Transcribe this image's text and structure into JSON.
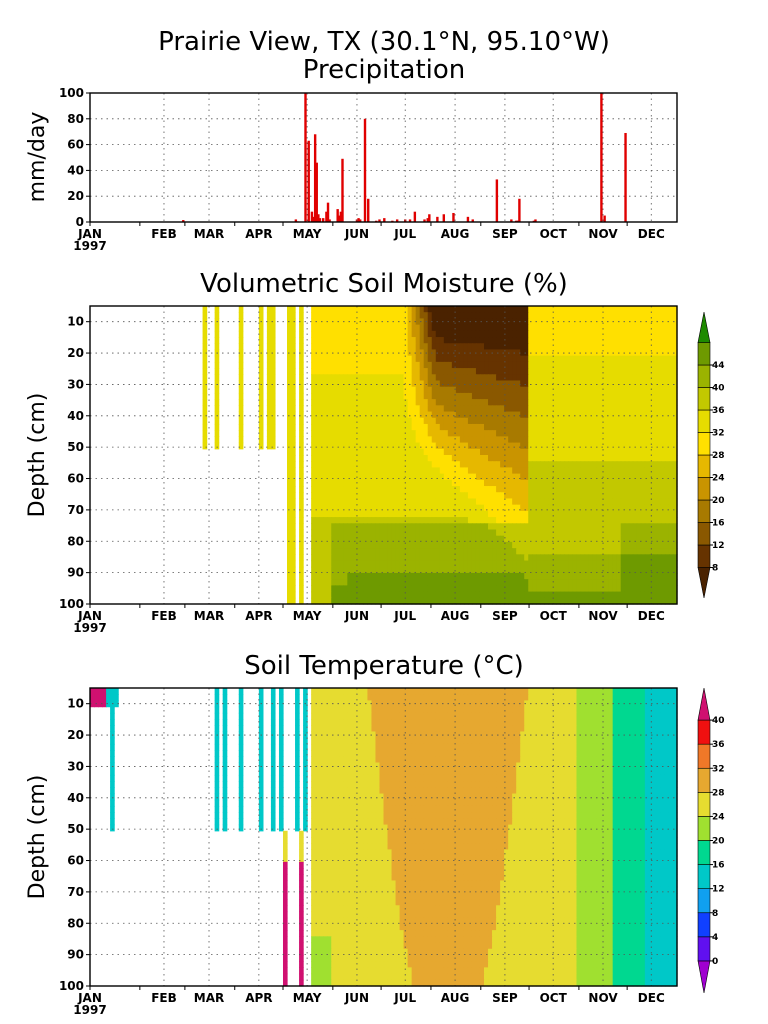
{
  "figure": {
    "title_line1": "Prairie View, TX (30.1°N, 95.10°W)",
    "year_label": "1997"
  },
  "months": [
    "JAN",
    "FEB",
    "MAR",
    "APR",
    "MAY",
    "JUN",
    "JUL",
    "AUG",
    "SEP",
    "OCT",
    "NOV",
    "DEC"
  ],
  "month_start_day": [
    0,
    31,
    59,
    90,
    120,
    151,
    181,
    212,
    243,
    273,
    304,
    334
  ],
  "chart_data": [
    {
      "type": "bar",
      "title": "Precipitation",
      "ylabel": "mm/day",
      "xlim": [
        0,
        365
      ],
      "ylim": [
        0,
        100
      ],
      "yticks": [
        0,
        20,
        40,
        60,
        80,
        100
      ],
      "bar_color": "#e00000",
      "x_day_of_year": [
        58,
        128,
        129,
        134,
        136,
        138,
        139,
        140,
        141,
        142,
        143,
        145,
        147,
        148,
        149,
        154,
        155,
        156,
        157,
        166,
        167,
        168,
        171,
        173,
        178,
        180,
        183,
        188,
        191,
        196,
        199,
        202,
        208,
        210,
        211,
        216,
        220,
        226,
        235,
        238,
        253,
        262,
        265,
        266,
        266,
        267,
        276,
        277,
        318,
        320,
        333
      ],
      "values": [
        1.5,
        2,
        0.5,
        100,
        63,
        8,
        4,
        68,
        46,
        6,
        3,
        3,
        8,
        15,
        2,
        10,
        5,
        8,
        49,
        2,
        3,
        2,
        80,
        18,
        1,
        2,
        3,
        1,
        2,
        2,
        2,
        8,
        2,
        3,
        6,
        4,
        6,
        7,
        4,
        2,
        33,
        2,
        1,
        1,
        1,
        18,
        1,
        2,
        100,
        5,
        69
      ]
    },
    {
      "type": "heatmap",
      "title": "Volumetric Soil Moisture (%)",
      "ylabel": "Depth (cm)",
      "units": "%",
      "y_ticks": [
        10,
        20,
        30,
        40,
        50,
        60,
        70,
        80,
        90,
        100
      ],
      "colorbar_levels": [
        8,
        12,
        16,
        20,
        24,
        28,
        32,
        36,
        40,
        44
      ],
      "colorbar_colors": [
        "#4a2200",
        "#663300",
        "#8a5800",
        "#a87a00",
        "#c99400",
        "#e6b800",
        "#ffe000",
        "#e6dc00",
        "#c2c800",
        "#9bb300",
        "#6e9a00",
        "#1e8a00"
      ]
    },
    {
      "type": "heatmap",
      "title": "Soil Temperature (°C)",
      "ylabel": "Depth (cm)",
      "units": "°C",
      "y_ticks": [
        10,
        20,
        30,
        40,
        50,
        60,
        70,
        80,
        90,
        100
      ],
      "colorbar_levels": [
        0,
        4,
        8,
        12,
        16,
        20,
        24,
        28,
        32,
        36,
        40
      ],
      "colorbar_colors": [
        "#a000d0",
        "#6010f0",
        "#1040ff",
        "#10a0f0",
        "#00c8c8",
        "#00d890",
        "#a0e030",
        "#e6dc30",
        "#e6a830",
        "#f07828",
        "#f01010",
        "#d01070"
      ]
    }
  ]
}
